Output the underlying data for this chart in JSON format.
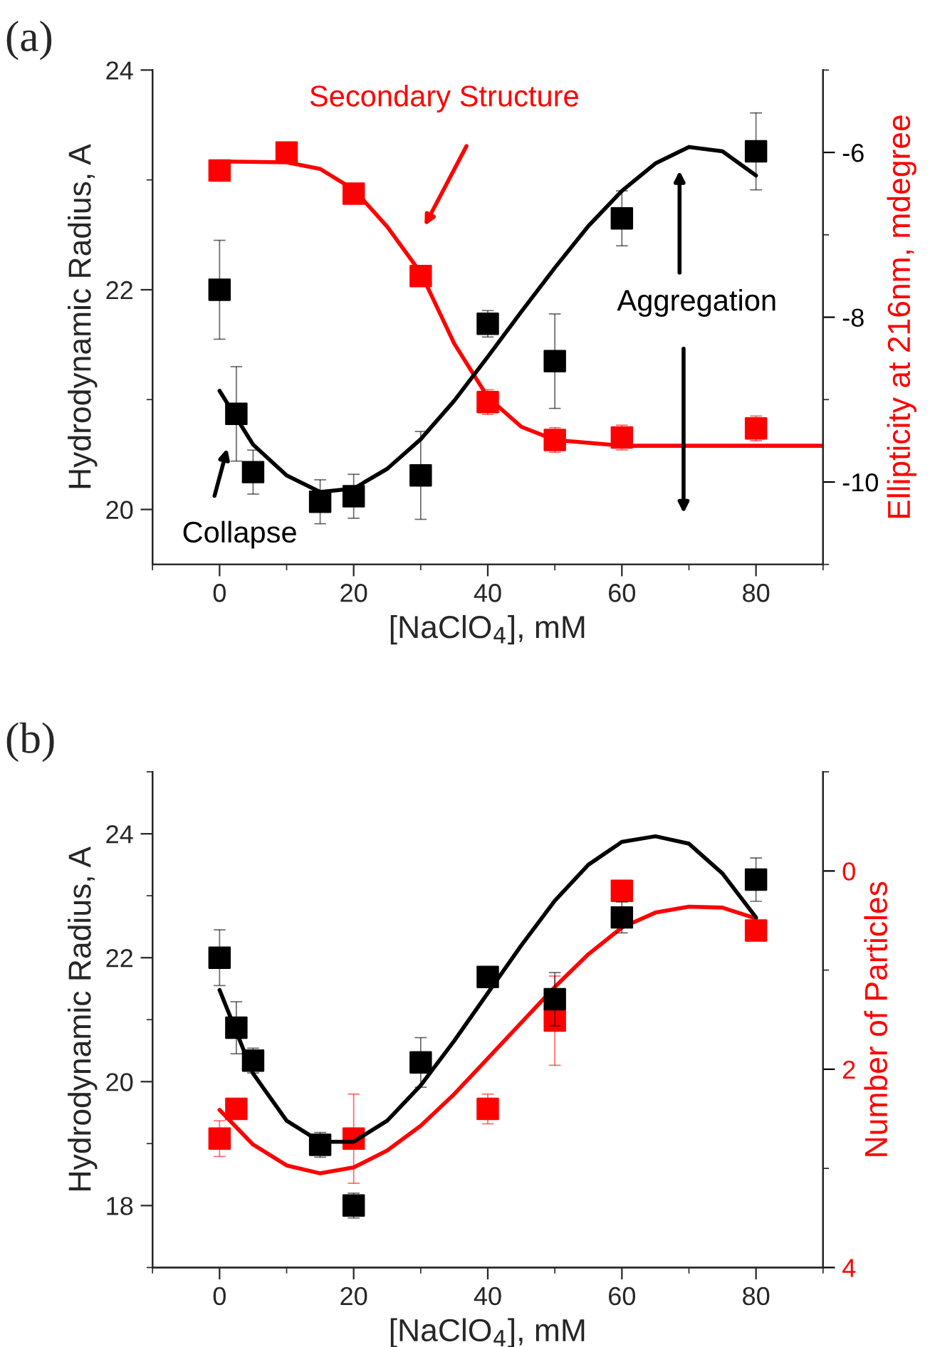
{
  "chart_data": [
    {
      "type": "scatter",
      "title": "(a)",
      "xlabel": "[NaClO$_{4}$], mM",
      "ylabel": "Hydrodynamic Radius, A",
      "y2label": "Ellipticity at 216nm, mdegree",
      "xlim": [
        -10,
        90
      ],
      "xticks": [
        0,
        20,
        40,
        60,
        80
      ],
      "ylim": [
        19.5,
        24
      ],
      "yticks": [
        20,
        22,
        24
      ],
      "y2lim": [
        -11,
        -5
      ],
      "y2ticks": [
        -10,
        -8,
        -6
      ],
      "grid": false,
      "legend": false,
      "annotations": [
        "Secondary Structure",
        "Collapse",
        "Aggregation"
      ],
      "series": [
        {
          "type": "scatter",
          "color": "#000000",
          "marker": "square",
          "x": [
            0,
            2.5,
            5,
            15,
            20,
            30,
            40,
            50,
            60,
            80
          ],
          "values": [
            22.0,
            20.87,
            20.34,
            20.07,
            20.12,
            20.31,
            21.69,
            21.35,
            22.65,
            23.26
          ],
          "errors": [
            0.45,
            0.43,
            0.2,
            0.2,
            0.2,
            0.4,
            0.12,
            0.43,
            0.25,
            0.35
          ]
        },
        {
          "type": "scatter",
          "color": "#ff0000",
          "marker": "square",
          "axis": "y2",
          "x": [
            0,
            10,
            20,
            30,
            40,
            50,
            60,
            80
          ],
          "values": [
            -6.22,
            -6.0,
            -6.5,
            -7.5,
            -9.03,
            -9.49,
            -9.46,
            -9.35
          ],
          "errors": [
            0.1,
            0.1,
            0.1,
            0.1,
            0.15,
            0.15,
            0.15,
            0.15
          ]
        },
        {
          "type": "line",
          "color": "#000000",
          "x": [
            0,
            5,
            10,
            15,
            20,
            25,
            30,
            35,
            40,
            45,
            50,
            55,
            60,
            65,
            70,
            75,
            80
          ],
          "values": [
            21.08,
            20.59,
            20.31,
            20.16,
            20.19,
            20.37,
            20.64,
            20.99,
            21.39,
            21.8,
            22.2,
            22.58,
            22.9,
            23.15,
            23.3,
            23.26,
            23.04
          ]
        },
        {
          "type": "line",
          "color": "#ff0000",
          "axis": "y2",
          "x": [
            0,
            10,
            15,
            20,
            25,
            30,
            35,
            40,
            45,
            50,
            60,
            70,
            80,
            90
          ],
          "values": [
            -6.11,
            -6.12,
            -6.2,
            -6.45,
            -6.9,
            -7.46,
            -8.32,
            -8.97,
            -9.33,
            -9.49,
            -9.56,
            -9.56,
            -9.56,
            -9.56
          ]
        }
      ]
    },
    {
      "type": "scatter",
      "title": "(b)",
      "xlabel": "[NaClO$_{4}$], mM",
      "ylabel": "Hydrodynamic Radius, A",
      "y2label": "Number of Particles",
      "xlim": [
        -10,
        90
      ],
      "xticks": [
        0,
        20,
        40,
        60,
        80
      ],
      "ylim": [
        17,
        25
      ],
      "yticks": [
        18,
        20,
        22,
        24
      ],
      "y2lim": [
        4,
        -1
      ],
      "y2ticks": [
        0,
        2,
        4
      ],
      "grid": false,
      "legend": false,
      "series": [
        {
          "type": "scatter",
          "color": "#000000",
          "marker": "square",
          "x": [
            0,
            2.5,
            5,
            15,
            20,
            30,
            40,
            50,
            60,
            80
          ],
          "values": [
            22.0,
            20.87,
            20.34,
            18.98,
            18.0,
            20.31,
            21.69,
            21.33,
            22.65,
            23.26
          ],
          "errors": [
            0.45,
            0.42,
            0.2,
            0.2,
            0.2,
            0.4,
            null,
            0.43,
            0.25,
            0.35
          ]
        },
        {
          "type": "scatter",
          "color": "#ff0000",
          "marker": "square",
          "axis": "y2",
          "x": [
            0,
            2.5,
            20,
            40,
            50,
            60,
            80
          ],
          "values": [
            2.7,
            2.4,
            2.7,
            2.4,
            1.51,
            0.2,
            0.6
          ],
          "errors": [
            0.18,
            null,
            0.45,
            0.15,
            0.45,
            null,
            0.1
          ]
        },
        {
          "type": "line",
          "color": "#000000",
          "x": [
            0,
            5,
            10,
            15,
            20,
            25,
            30,
            35,
            40,
            45,
            50,
            55,
            60,
            65,
            70,
            75,
            80
          ],
          "values": [
            21.48,
            20.13,
            19.37,
            19.03,
            19.03,
            19.37,
            19.94,
            20.66,
            21.43,
            22.2,
            22.92,
            23.5,
            23.87,
            23.96,
            23.84,
            23.36,
            22.65
          ]
        },
        {
          "type": "line",
          "color": "#ff0000",
          "axis": "y2",
          "x": [
            0,
            5,
            10,
            15,
            20,
            25,
            30,
            35,
            40,
            45,
            50,
            55,
            60,
            65,
            70,
            75,
            80
          ],
          "values": [
            2.41,
            2.76,
            2.97,
            3.05,
            2.99,
            2.82,
            2.57,
            2.25,
            1.89,
            1.53,
            1.17,
            0.84,
            0.57,
            0.42,
            0.36,
            0.37,
            0.48
          ]
        }
      ]
    }
  ]
}
